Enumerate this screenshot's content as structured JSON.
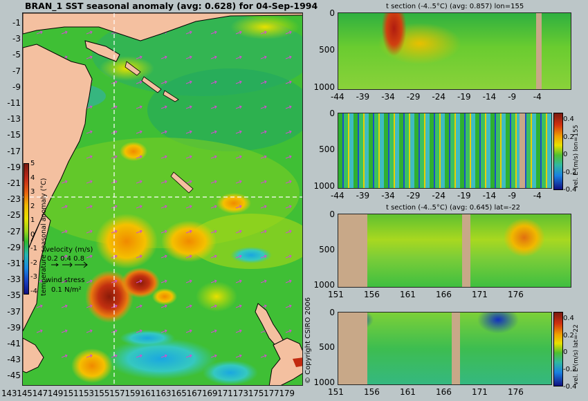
{
  "map": {
    "title": "BRAN_1 SST seasonal anomaly (avg: 0.628) for 04-Sep-1994",
    "lat_labels": [
      "-1",
      "-3",
      "-5",
      "-7",
      "-9",
      "-11",
      "-13",
      "-15",
      "-17",
      "-19",
      "-21",
      "-23",
      "-25",
      "-27",
      "-29",
      "-31",
      "-33",
      "-35",
      "-37",
      "-39",
      "-41",
      "-43",
      "-45"
    ],
    "lon_labels": "143145147149151153155157159161163165167169171173175177179",
    "colorbar": {
      "label": "temperature seasonal anomaly (°C)",
      "ticks": [
        "5",
        "4",
        "3",
        "2",
        "1",
        "0",
        "-1",
        "-2",
        "-3",
        "-4"
      ]
    },
    "velocity_legend": {
      "label": "velocity (m/s)",
      "values": "0.2 0.4 0.8"
    },
    "wind_legend": {
      "label": "wind stress",
      "value": "0.1 N/m²"
    },
    "copyright": "© Copyright CSIRO 2006"
  },
  "panels": [
    {
      "title": "t section (-4..5°C) (avg: 0.857) lon=155",
      "y_ticks": [
        "0",
        "500",
        "1000"
      ],
      "x_ticks": [
        "-44",
        "-39",
        "-34",
        "-29",
        "-24",
        "-19",
        "-14",
        "-9",
        "-4"
      ]
    },
    {
      "title": "",
      "side_label": "vel. E (m/s) lon=155",
      "y_ticks": [
        "0",
        "500",
        "1000"
      ],
      "x_ticks": [
        "-44",
        "-39",
        "-34",
        "-29",
        "-24",
        "-19",
        "-14",
        "-9",
        "-4"
      ],
      "cbar_ticks": [
        "0.4",
        "0.2",
        "0",
        "-0.2",
        "-0.4"
      ]
    },
    {
      "title": "t section (-4..5°C) (avg: 0.645) lat=-22",
      "y_ticks": [
        "0",
        "500",
        "1000"
      ],
      "x_ticks": [
        "151",
        "156",
        "161",
        "166",
        "171",
        "176"
      ]
    },
    {
      "title": "",
      "side_label": "vel. E (m/s) lat=-22",
      "y_ticks": [
        "0",
        "500",
        "1000"
      ],
      "x_ticks": [
        "151",
        "156",
        "161",
        "166",
        "171",
        "176"
      ],
      "cbar_ticks": [
        "0.4",
        "0.2",
        "0",
        "-0.2",
        "-0.4"
      ]
    }
  ]
}
